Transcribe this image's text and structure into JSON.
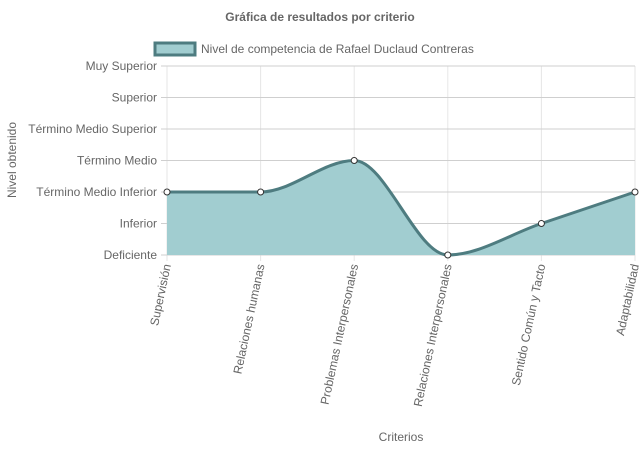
{
  "chart_data": {
    "type": "area",
    "title": "Gráfica de resultados por criterio",
    "xlabel": "Criterios",
    "ylabel": "Nivel obtenido",
    "categories": [
      "Supervisión",
      "Relaciones humanas",
      "Problemas Interpersonales",
      "Relaciones Interpersonales",
      "Sentido Común y Tacto",
      "Adaptabilidad"
    ],
    "y_levels": [
      "Deficiente",
      "Inferior",
      "Término Medio Inferior",
      "Término Medio",
      "Término Medio Superior",
      "Superior",
      "Muy Superior"
    ],
    "ylim": [
      0,
      6
    ],
    "series": [
      {
        "name": "Nivel de competencia de Rafael Duclaud Contreras",
        "values": [
          2,
          2,
          3,
          0,
          1,
          2
        ],
        "line_color": "#4e7c80",
        "fill_color": "#a1cdd0"
      }
    ],
    "grid": true,
    "legend_position": "top"
  }
}
